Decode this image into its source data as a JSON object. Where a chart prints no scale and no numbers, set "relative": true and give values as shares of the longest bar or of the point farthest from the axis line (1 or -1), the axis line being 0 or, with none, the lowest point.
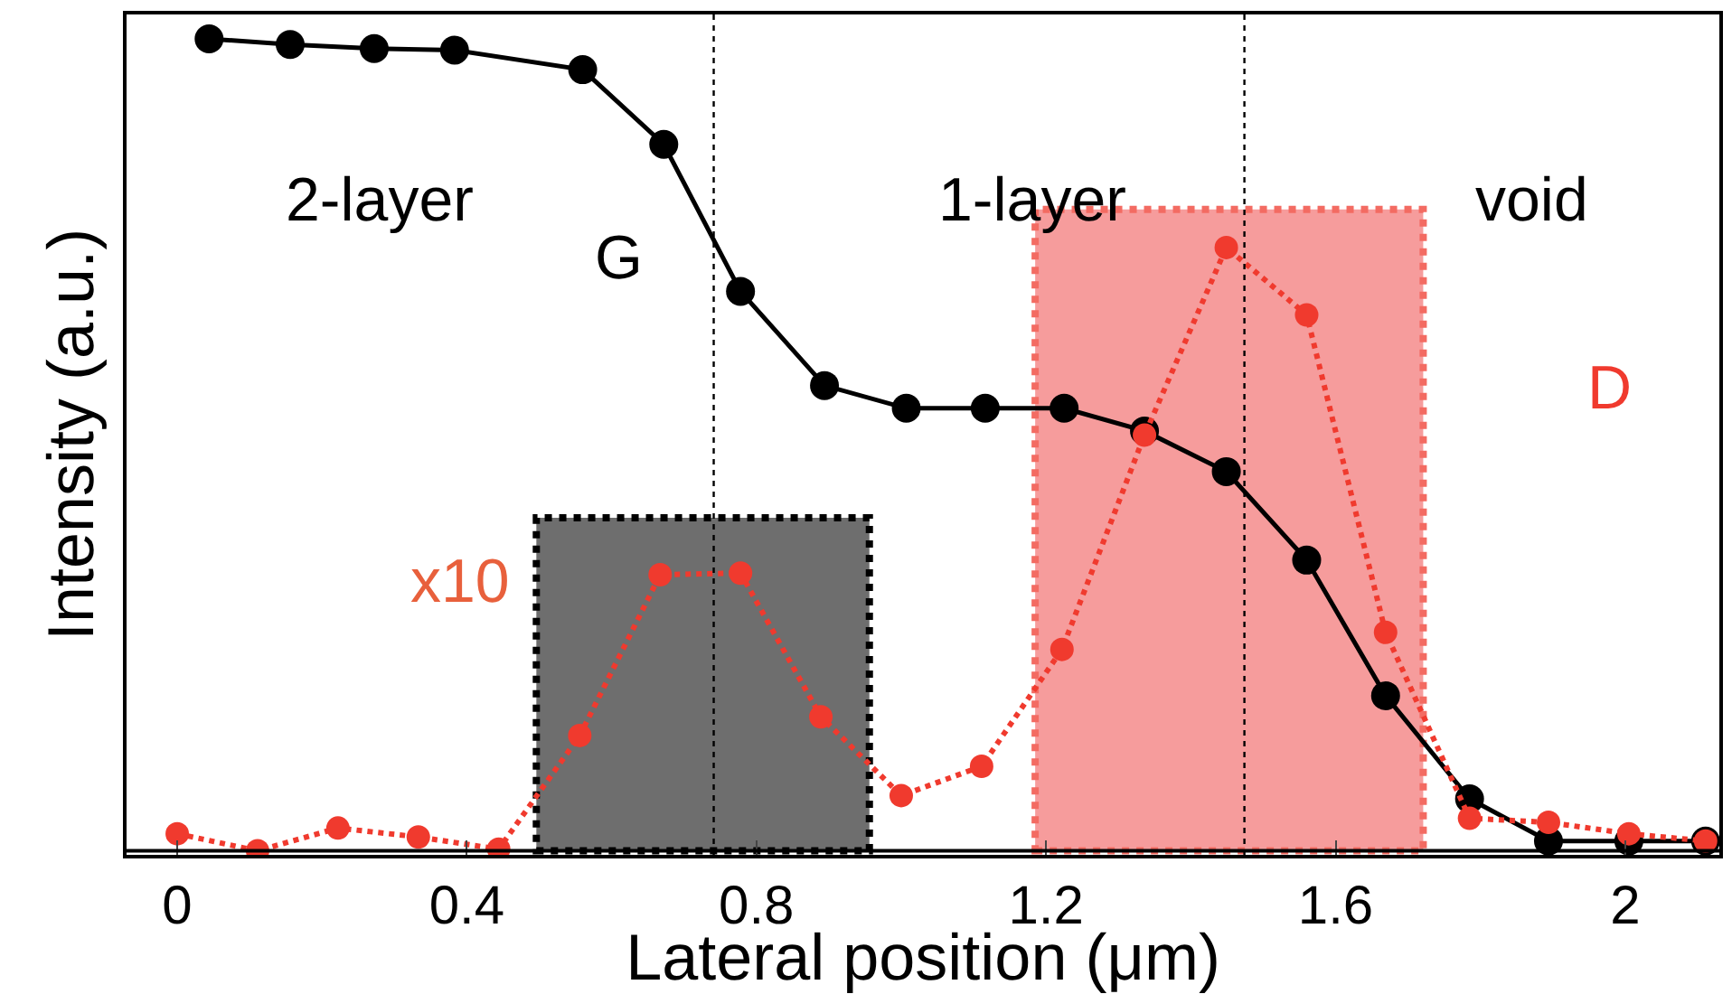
{
  "chart_data": {
    "type": "line",
    "relative": true,
    "xlabel": "Lateral position (μm)",
    "ylabel": "Intensity (a.u.)",
    "xlim": [
      -0.07,
      2.13
    ],
    "xticks": [
      0,
      0.4,
      0.8,
      1.2,
      1.6,
      2
    ],
    "grid": false,
    "legend": false,
    "marker": "circle",
    "series": [
      {
        "color": "#000000",
        "line_style": "solid",
        "x": [
          0.044,
          0.156,
          0.272,
          0.383,
          0.56,
          0.672,
          0.778,
          0.894,
          1.007,
          1.116,
          1.225,
          1.336,
          1.449,
          1.56,
          1.669,
          1.785,
          1.894,
          2.005,
          2.111
        ],
        "values": [
          1.0,
          0.993,
          0.988,
          0.986,
          0.962,
          0.87,
          0.689,
          0.573,
          0.545,
          0.545,
          0.545,
          0.517,
          0.467,
          0.358,
          0.191,
          0.064,
          0.012,
          0.012,
          0.012
        ]
      },
      {
        "color": "#f03a2e",
        "line_style": "dotted",
        "x": [
          0,
          0.111,
          0.222,
          0.333,
          0.444,
          0.556,
          0.667,
          0.778,
          0.889,
          1.0,
          1.111,
          1.222,
          1.336,
          1.449,
          1.56,
          1.669,
          1.785,
          1.894,
          2.005,
          2.111
        ],
        "values": [
          0.021,
          0.0,
          0.028,
          0.017,
          0.002,
          0.142,
          0.34,
          0.342,
          0.165,
          0.068,
          0.104,
          0.248,
          0.512,
          0.743,
          0.66,
          0.269,
          0.04,
          0.035,
          0.021,
          0.012
        ]
      }
    ],
    "bands": [
      {
        "axis": "x",
        "from": 0.496,
        "to": 0.956,
        "color": "#6e6e6e"
      },
      {
        "axis": "x",
        "from": 1.185,
        "to": 1.721,
        "color": "#f47c7c"
      }
    ],
    "ref_lines": [
      {
        "axis": "x",
        "value": 0.741,
        "line_style": "dotted"
      },
      {
        "axis": "x",
        "value": 1.474,
        "line_style": "dotted"
      }
    ],
    "annotations": [
      "2-layer",
      "G",
      "1-layer",
      "void",
      "D",
      "x10"
    ]
  }
}
